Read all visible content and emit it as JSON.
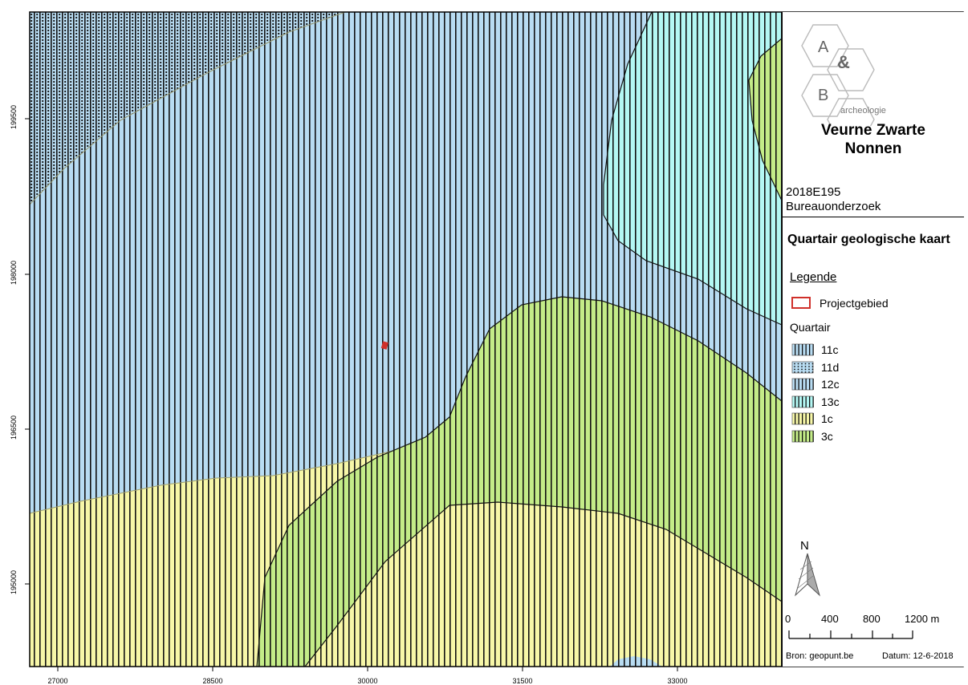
{
  "map": {
    "y_ticks": [
      "199500",
      "198000",
      "196500",
      "195000"
    ],
    "x_ticks": [
      "27000",
      "28500",
      "30000",
      "31500",
      "33000"
    ]
  },
  "logo": {
    "letter_a": "A",
    "ampersand": "&",
    "letter_b": "B",
    "wordmark": "archeologie"
  },
  "panel": {
    "title_line1": "Veurne Zwarte",
    "title_line2": "Nonnen",
    "code": "2018E195",
    "study": "Bureauonderzoek",
    "map_title": "Quartair geologische kaart",
    "legend_title": "Legende",
    "project_label": "Projectgebied",
    "quartair_label": "Quartair",
    "legend_items": [
      {
        "label": "11c",
        "color": "#b8dcf2",
        "pattern": "lines"
      },
      {
        "label": "11d",
        "color": "#b8dcf2",
        "pattern": "dots"
      },
      {
        "label": "12c",
        "color": "#b8dcf2",
        "pattern": "lines"
      },
      {
        "label": "13c",
        "color": "#b4f8f4",
        "pattern": "lines"
      },
      {
        "label": "1c",
        "color": "#f7f7a8",
        "pattern": "lines"
      },
      {
        "label": "3c",
        "color": "#c4ec88",
        "pattern": "lines"
      }
    ],
    "north_label": "N",
    "scale_labels": [
      "0",
      "400",
      "800",
      "1200 m"
    ],
    "source": "Bron: geopunt.be",
    "date": "Datum: 12-6-2018"
  },
  "colors": {
    "blue": "#b8dcf2",
    "cyan": "#b4f8f4",
    "yellow": "#f7f7a8",
    "green": "#c4ec88",
    "project": "#d0302a"
  }
}
